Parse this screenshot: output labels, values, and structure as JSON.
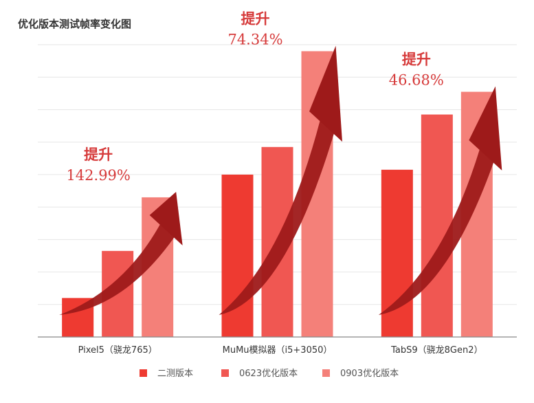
{
  "chart_data": {
    "type": "bar",
    "title": "优化版本测试帧率变化图",
    "categories": [
      "Pixel5（骁龙765）",
      "MuMu模拟器（i5+3050）",
      "TabS9（骁龙8Gen2）"
    ],
    "series": [
      {
        "name": "二测版本",
        "color": "#ee3a31",
        "values": [
          12,
          50,
          51.5
        ]
      },
      {
        "name": "0623优化版本",
        "color": "#f05752",
        "values": [
          26.5,
          58.5,
          68.5
        ]
      },
      {
        "name": "0903优化版本",
        "color": "#f48079",
        "values": [
          43,
          88,
          75.5
        ]
      }
    ],
    "ylim": [
      0,
      90
    ],
    "xlabel": "",
    "ylabel": "",
    "grid": true,
    "legend": "bottom",
    "annotations": [
      {
        "category": "Pixel5（骁龙765）",
        "label": "提升",
        "value": "142.99%"
      },
      {
        "category": "MuMu模拟器（i5+3050）",
        "label": "提升",
        "value": "74.34%"
      },
      {
        "category": "TabS9（骁龙8Gen2）",
        "label": "提升",
        "value": "46.68%"
      }
    ],
    "annotation_color": "#d63a3a",
    "arrow_color": "#9e1a1a"
  }
}
